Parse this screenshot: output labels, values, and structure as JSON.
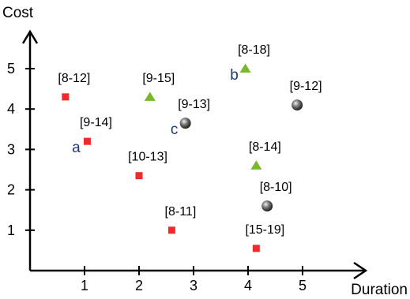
{
  "chart_data": {
    "type": "scatter",
    "xlabel": "Duration",
    "ylabel": "Cost",
    "xlim": [
      0,
      5.8
    ],
    "ylim": [
      0,
      6
    ],
    "x_ticks": [
      "1",
      "2",
      "3",
      "4",
      "5"
    ],
    "y_ticks": [
      "1",
      "2",
      "3",
      "4",
      "5"
    ],
    "grid": false,
    "marker_colors": {
      "square": "#ee2a2a",
      "triangle": "#79b82a",
      "sphere": "#555555"
    },
    "points": [
      {
        "x": 0.65,
        "y": 4.3,
        "label": "[8-12]",
        "marker": "square"
      },
      {
        "x": 1.05,
        "y": 3.2,
        "label": "[9-14]",
        "marker": "square",
        "letter": "a"
      },
      {
        "x": 2.0,
        "y": 2.35,
        "label": "[10-13]",
        "marker": "square"
      },
      {
        "x": 2.6,
        "y": 1.0,
        "label": "[8-11]",
        "marker": "square"
      },
      {
        "x": 4.15,
        "y": 0.55,
        "label": "[15-19]",
        "marker": "square"
      },
      {
        "x": 2.2,
        "y": 4.3,
        "label": "[9-15]",
        "marker": "triangle"
      },
      {
        "x": 3.95,
        "y": 5.0,
        "label": "[8-18]",
        "marker": "triangle",
        "letter": "b"
      },
      {
        "x": 4.15,
        "y": 2.6,
        "label": "[8-14]",
        "marker": "triangle"
      },
      {
        "x": 2.85,
        "y": 3.65,
        "label": "[9-13]",
        "marker": "sphere",
        "letter": "c"
      },
      {
        "x": 4.9,
        "y": 4.1,
        "label": "[9-12]",
        "marker": "sphere"
      },
      {
        "x": 4.35,
        "y": 1.6,
        "label": "[8-10]",
        "marker": "sphere"
      }
    ]
  }
}
